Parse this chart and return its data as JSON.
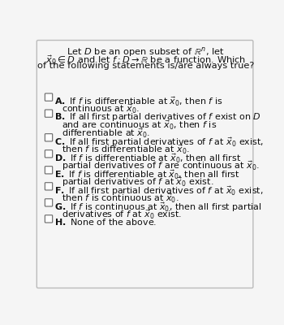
{
  "bg_color": "#f5f5f5",
  "text_color": "#111111",
  "border_color": "#bbbbbb",
  "checkbox_color": "#ffffff",
  "checkbox_edge_color": "#666666",
  "font_size": 8.0,
  "title_font_size": 8.2,
  "title": [
    "Let $D$ be an open subset of $\\mathbb{R}^n$, let",
    "$\\vec{x}_0 \\in D$ and let $f : D \\rightarrow \\mathbb{R}$ be a function. Which",
    "of the following statements is/are always true?"
  ],
  "options": [
    {
      "label": "A",
      "lines": [
        "If $f$ is differentiable at $\\vec{x}_0$, then $f$ is",
        "continuous at $\\vec{x}_0$."
      ]
    },
    {
      "label": "B",
      "lines": [
        "If all first partial derivatives of $f$ exist on $D$",
        "and are continuous at $\\vec{x}_0$, then $f$ is",
        "differentiable at $\\vec{x}_0$."
      ]
    },
    {
      "label": "C",
      "lines": [
        "If all first partial derivatives of $f$ at $\\vec{x}_0$ exist,",
        "then $f$ is differentiable at $\\vec{x}_0$."
      ]
    },
    {
      "label": "D",
      "lines": [
        "If $f$ is differentiable at $\\vec{x}_0$, then all first",
        "partial derivatives of $f$ are continuous at $\\vec{x}_0$."
      ]
    },
    {
      "label": "E",
      "lines": [
        "If $f$ is differentiable at $\\vec{x}_0$, then all first",
        "partial derivatives of $f$ at $\\vec{x}_0$ exist."
      ]
    },
    {
      "label": "F",
      "lines": [
        "If all first partial derivatives of $f$ at $\\vec{x}_0$ exist,",
        "then $f$ is continuous at $\\vec{x}_0$."
      ]
    },
    {
      "label": "G",
      "lines": [
        "If $f$ is continuous at $\\vec{x}_0$, then all first partial",
        "derivatives of $f$ at $\\vec{x}_0$ exist."
      ]
    },
    {
      "label": "H",
      "lines": [
        "None of the above."
      ]
    }
  ]
}
